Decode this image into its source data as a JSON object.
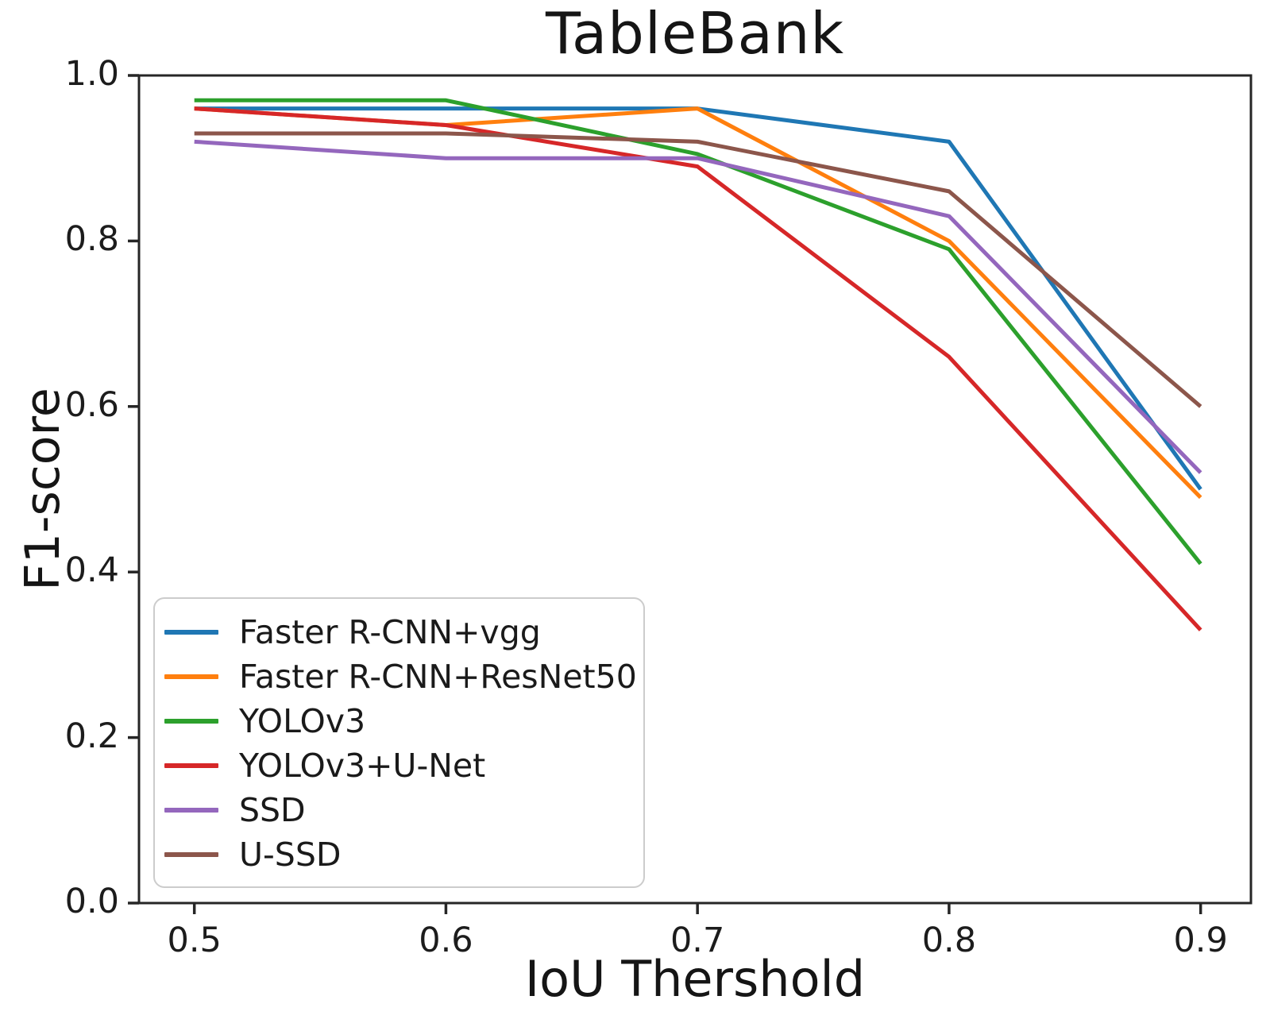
{
  "title": "TableBank",
  "axes": {
    "x_label": "IoU Thershold",
    "y_label": "F1-score",
    "x_tick_labels": [
      "0.5",
      "0.6",
      "0.7",
      "0.8",
      "0.9"
    ],
    "y_tick_labels": [
      "0.0",
      "0.2",
      "0.4",
      "0.6",
      "0.8",
      "1.0"
    ]
  },
  "colors": {
    "axis": "#262626",
    "tick_text": "#1c1c1c",
    "legend_border": "#cccccc"
  },
  "chart_data": {
    "type": "line",
    "title": "TableBank",
    "xlabel": "IoU Thershold",
    "ylabel": "F1-score",
    "x": [
      0.5,
      0.6,
      0.7,
      0.8,
      0.9
    ],
    "series": [
      {
        "name": "Faster R-CNN+vgg",
        "color": "#1f77b4",
        "values": [
          0.96,
          0.96,
          0.96,
          0.92,
          0.5
        ]
      },
      {
        "name": "Faster R-CNN+ResNet50",
        "color": "#ff7f0e",
        "values": [
          0.96,
          0.94,
          0.96,
          0.8,
          0.49
        ]
      },
      {
        "name": "YOLOv3",
        "color": "#2ca02c",
        "values": [
          0.97,
          0.97,
          0.905,
          0.79,
          0.41
        ]
      },
      {
        "name": "YOLOv3+U-Net",
        "color": "#d62728",
        "values": [
          0.96,
          0.94,
          0.89,
          0.66,
          0.33
        ]
      },
      {
        "name": "SSD",
        "color": "#9467bd",
        "values": [
          0.92,
          0.9,
          0.9,
          0.83,
          0.52
        ]
      },
      {
        "name": "U-SSD",
        "color": "#8c564b",
        "values": [
          0.93,
          0.93,
          0.92,
          0.86,
          0.6
        ]
      }
    ],
    "xlim": [
      0.478,
      0.92
    ],
    "ylim": [
      0.0,
      1.0
    ],
    "x_ticks": [
      0.5,
      0.6,
      0.7,
      0.8,
      0.9
    ],
    "y_ticks": [
      0.0,
      0.2,
      0.4,
      0.6,
      0.8,
      1.0
    ],
    "grid": false,
    "legend_position": "lower left"
  }
}
